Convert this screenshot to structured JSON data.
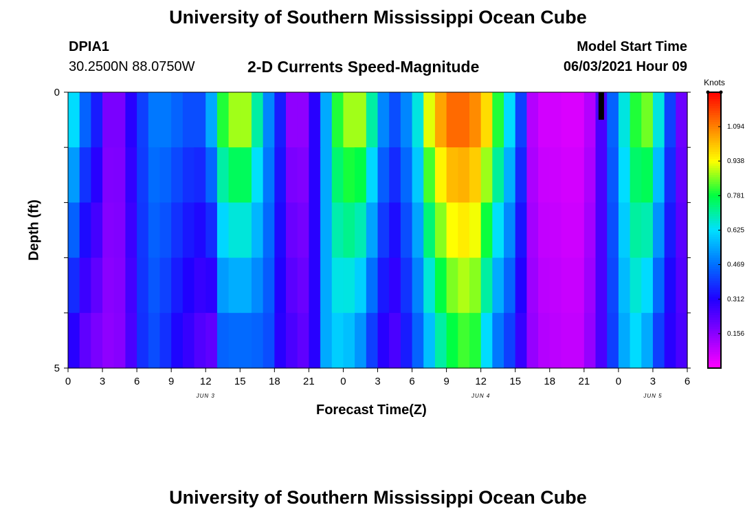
{
  "page": {
    "title_top": "University of Southern Mississippi Ocean Cube",
    "title_bottom": "University of Southern Mississippi Ocean Cube",
    "station_id": "DPIA1",
    "station_coords": "30.2500N  88.0750W",
    "plot_title": "2-D Currents Speed-Magnitude",
    "model_start_label": "Model Start Time",
    "model_start_value": "06/03/2021 Hour 09"
  },
  "colors": {
    "scale": [
      "#ff00ff",
      "#8a00ff",
      "#2000ff",
      "#0070ff",
      "#00e0ff",
      "#00ff40",
      "#ffff00",
      "#ff8000",
      "#ff0000"
    ]
  },
  "chart_data": {
    "type": "heatmap",
    "title": "2-D Currents Speed-Magnitude",
    "xlabel": "Forecast Time(Z)",
    "ylabel": "Depth (ft)",
    "x_ticks": [
      "0",
      "3",
      "6",
      "9",
      "12",
      "15",
      "18",
      "21",
      "0",
      "3",
      "6",
      "9",
      "12",
      "15",
      "18",
      "21",
      "0",
      "3",
      "6"
    ],
    "x_range_hours": [
      0,
      54
    ],
    "date_labels": [
      {
        "hour": 12,
        "label": "JUN 3"
      },
      {
        "hour": 36,
        "label": "JUN 4"
      },
      {
        "hour": 51,
        "label": "JUN 5"
      }
    ],
    "y_tick_labels": [
      {
        "value": 0,
        "label": "0"
      },
      {
        "value": 5,
        "label": "5"
      }
    ],
    "y_range_ft": [
      0,
      5
    ],
    "depth_levels_ft": [
      0,
      1,
      2,
      3,
      4,
      5
    ],
    "colorbar": {
      "unit": "Knots",
      "min": 0,
      "max": 1.25,
      "tick_labels": [
        "1.094",
        "0.938",
        "0.781",
        "0.625",
        "0.469",
        "0.312",
        "0.156"
      ]
    },
    "current_time_marker_hour": 46.5,
    "surface_speed_knots": [
      0.62,
      0.45,
      0.35,
      0.18,
      0.18,
      0.3,
      0.4,
      0.48,
      0.48,
      0.45,
      0.42,
      0.42,
      0.55,
      0.8,
      0.88,
      0.88,
      0.7,
      0.5,
      0.35,
      0.15,
      0.15,
      0.3,
      0.55,
      0.8,
      0.88,
      0.88,
      0.7,
      0.5,
      0.42,
      0.5,
      0.65,
      0.92,
      1.05,
      1.12,
      1.12,
      1.08,
      0.98,
      0.8,
      0.62,
      0.4,
      0.1,
      0.06,
      0.06,
      0.05,
      0.05,
      0.1,
      0.25,
      0.45,
      0.65,
      0.8,
      0.85,
      0.65,
      0.4,
      0.2
    ],
    "bottom_speed_knots": [
      0.3,
      0.22,
      0.18,
      0.15,
      0.16,
      0.25,
      0.38,
      0.42,
      0.38,
      0.32,
      0.28,
      0.24,
      0.22,
      0.45,
      0.46,
      0.46,
      0.45,
      0.42,
      0.3,
      0.25,
      0.22,
      0.3,
      0.55,
      0.6,
      0.58,
      0.52,
      0.4,
      0.3,
      0.25,
      0.35,
      0.45,
      0.58,
      0.7,
      0.78,
      0.82,
      0.8,
      0.62,
      0.48,
      0.4,
      0.28,
      0.14,
      0.1,
      0.09,
      0.08,
      0.08,
      0.14,
      0.25,
      0.4,
      0.55,
      0.62,
      0.55,
      0.4,
      0.3,
      0.25
    ]
  }
}
